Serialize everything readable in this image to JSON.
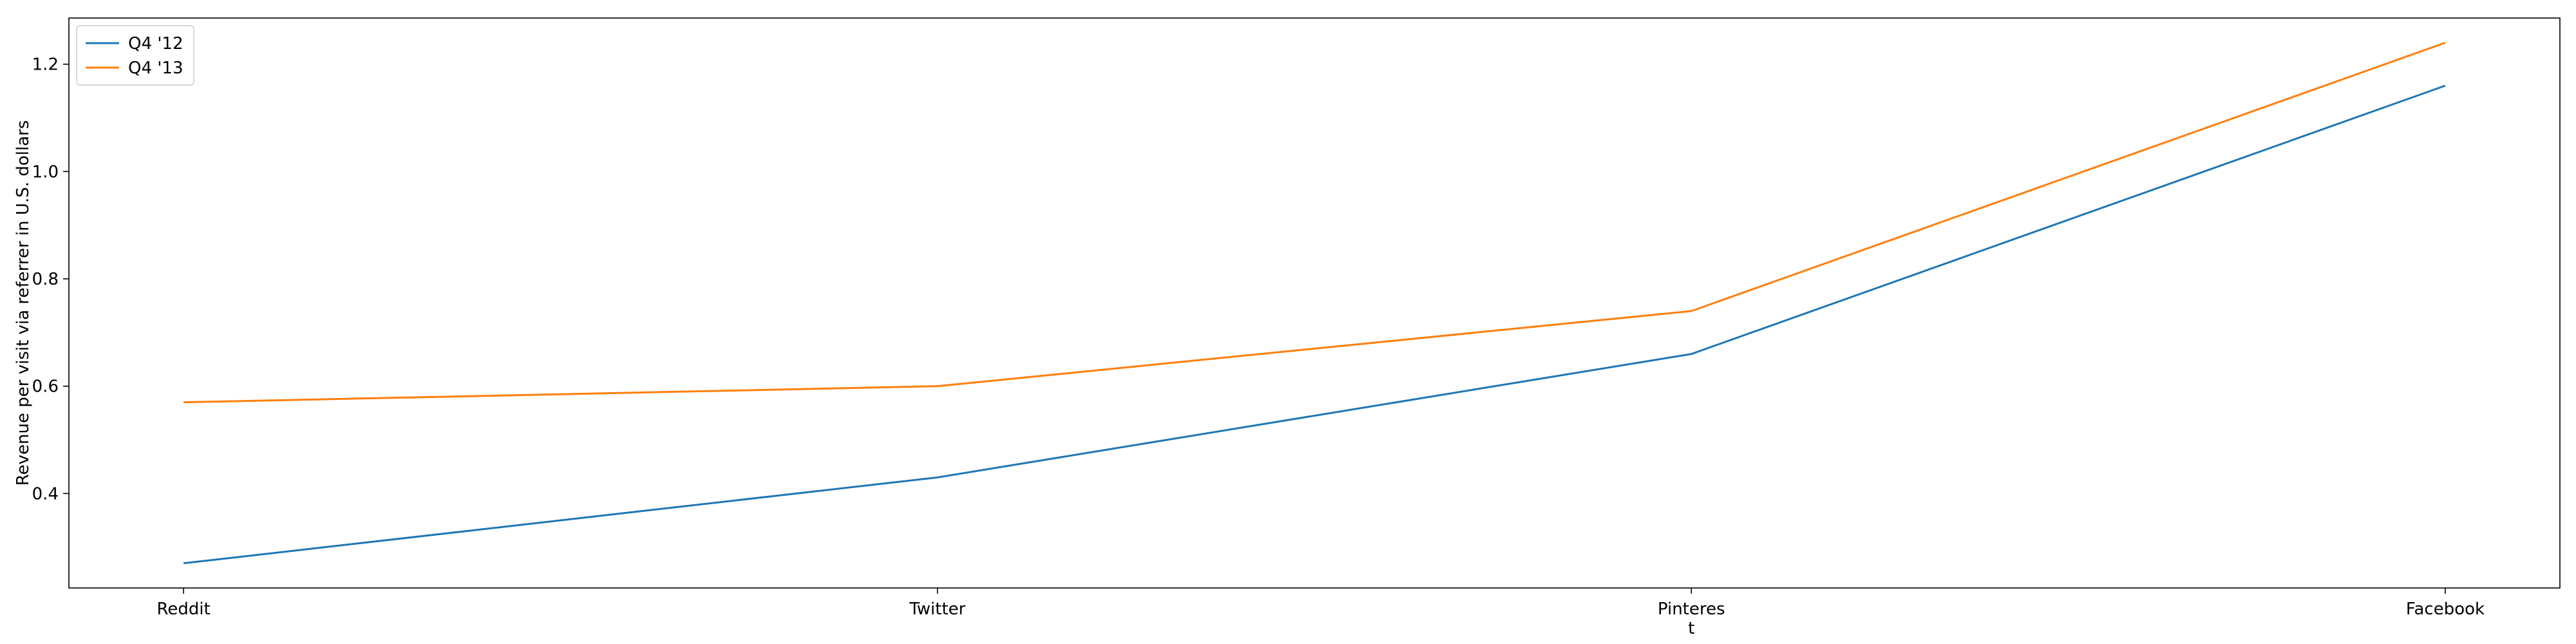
{
  "chart_data": {
    "type": "line",
    "categories": [
      "Reddit",
      "Twitter",
      "Pinterest",
      "Facebook"
    ],
    "category_tick_labels": [
      [
        "Reddit"
      ],
      [
        "Twitter"
      ],
      [
        "Pinteres",
        "t"
      ],
      [
        "Facebook"
      ]
    ],
    "series": [
      {
        "name": "Q4 '12",
        "values": [
          0.27,
          0.43,
          0.66,
          1.16
        ],
        "color": "#1f77b4"
      },
      {
        "name": "Q4 '13",
        "values": [
          0.57,
          0.6,
          0.74,
          1.24
        ],
        "color": "#ff7f0e"
      }
    ],
    "title": "",
    "xlabel": "",
    "ylabel": "Revenue per visit via referrer in U.S. dollars",
    "ylim": [
      0.224,
      1.286
    ],
    "yticks": [
      0.4,
      0.6,
      0.8,
      1.0,
      1.2
    ],
    "ytick_labels": [
      "0.4",
      "0.6",
      "0.8",
      "1.0",
      "1.2"
    ],
    "grid": false,
    "legend_position": "top-left"
  }
}
